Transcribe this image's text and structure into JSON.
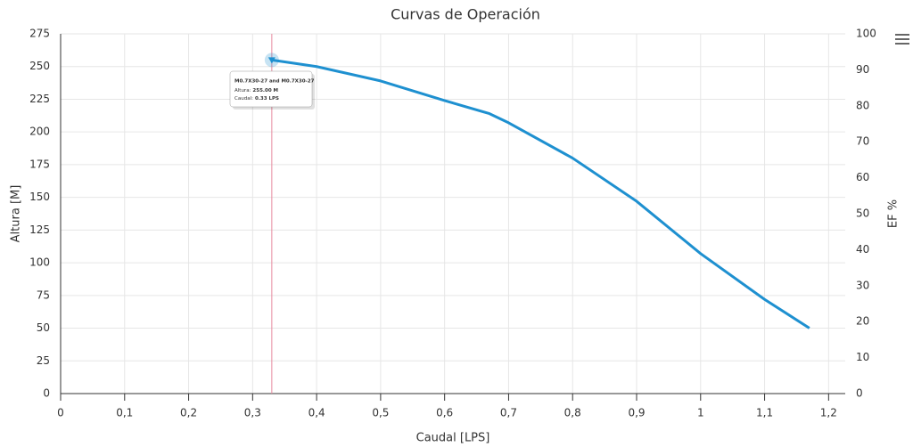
{
  "chart_data": {
    "type": "line",
    "title": "Curvas de Operación",
    "xlabel": "Caudal [LPS]",
    "ylabel": "Altura [M]",
    "y2label": "EF %",
    "x": [
      0.33,
      0.4,
      0.5,
      0.6,
      0.67,
      0.7,
      0.8,
      0.9,
      1.0,
      1.1,
      1.17
    ],
    "series": [
      {
        "name": "M0.7X30-27",
        "color": "#1e90d0",
        "values": [
          255,
          250,
          239,
          224,
          214,
          207,
          180,
          147,
          107,
          72,
          50
        ]
      }
    ],
    "xlim": [
      0,
      1.226
    ],
    "xticks": [
      0,
      {
        "value": 0.1,
        "label": "0,1"
      },
      {
        "value": 0.2,
        "label": "0,2"
      },
      {
        "value": 0.3,
        "label": "0,3"
      },
      {
        "value": 0.4,
        "label": "0,4"
      },
      {
        "value": 0.5,
        "label": "0,5"
      },
      {
        "value": 0.6,
        "label": "0,6"
      },
      {
        "value": 0.7,
        "label": "0,7"
      },
      {
        "value": 0.8,
        "label": "0,8"
      },
      {
        "value": 0.9,
        "label": "0,9"
      },
      1,
      {
        "value": 1.1,
        "label": "1,1"
      },
      {
        "value": 1.2,
        "label": "1,2"
      }
    ],
    "ylim": [
      0,
      275
    ],
    "yticks": [
      0,
      25,
      50,
      75,
      100,
      125,
      150,
      175,
      200,
      225,
      250,
      275
    ],
    "y2lim": [
      0,
      100
    ],
    "y2ticks": [
      0,
      10,
      20,
      30,
      40,
      50,
      60,
      70,
      80,
      90,
      100
    ],
    "grid": true,
    "tooltip": {
      "title": "M0.7X30-27 and M0.7X30-27",
      "rows": [
        {
          "name": "Altura:",
          "value": "255.00 M"
        },
        {
          "name": "Caudal:",
          "value": "0.33 LPS"
        }
      ]
    }
  }
}
